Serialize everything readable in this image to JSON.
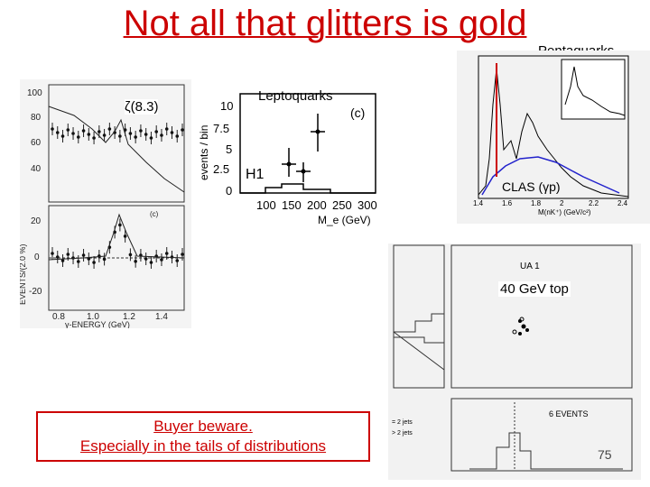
{
  "title": "Not all that glitters is gold",
  "labels": {
    "zeta": "ζ(8.3)",
    "leptoquarks": "Leptoquarks",
    "pentaquarks": "Pentaquarks",
    "top40": "40 GeV top"
  },
  "warning": {
    "line1": "Buyer beware.",
    "line2": "Especially in the tails of distributions"
  },
  "page_number": "75",
  "zeta_plot": {
    "ylabel": "EVENTS/(2.0 %)",
    "xlabel": "γ-ENERGY (GeV)",
    "panel_c": "(c)",
    "top_ticks": [
      "100",
      "80",
      "60",
      "40"
    ],
    "bottom_ticks": [
      "20",
      "0",
      "-20"
    ],
    "x_ticks": [
      "0.8",
      "1.0",
      "1.2",
      "1.4"
    ]
  },
  "lepto_plot": {
    "ylabel": "events / bin",
    "xlabel": "M_e (GeV)",
    "panel": "(c)",
    "detector": "H1",
    "y_ticks": [
      "10",
      "7.5",
      "5",
      "2.5",
      "0"
    ],
    "x_ticks": [
      "100",
      "150",
      "200",
      "250",
      "300"
    ]
  },
  "penta_plot": {
    "experiment": "CLAS (γp)",
    "xlabel": "M(nK⁺) (GeV/c²)",
    "x_ticks": [
      "1.4",
      "1.6",
      "1.8",
      "2",
      "2.2",
      "2.4"
    ]
  },
  "top_plot": {
    "experiment": "UA 1",
    "events": "6 EVENTS",
    "legend1": "= 2 jets",
    "legend2": "> 2 jets"
  }
}
